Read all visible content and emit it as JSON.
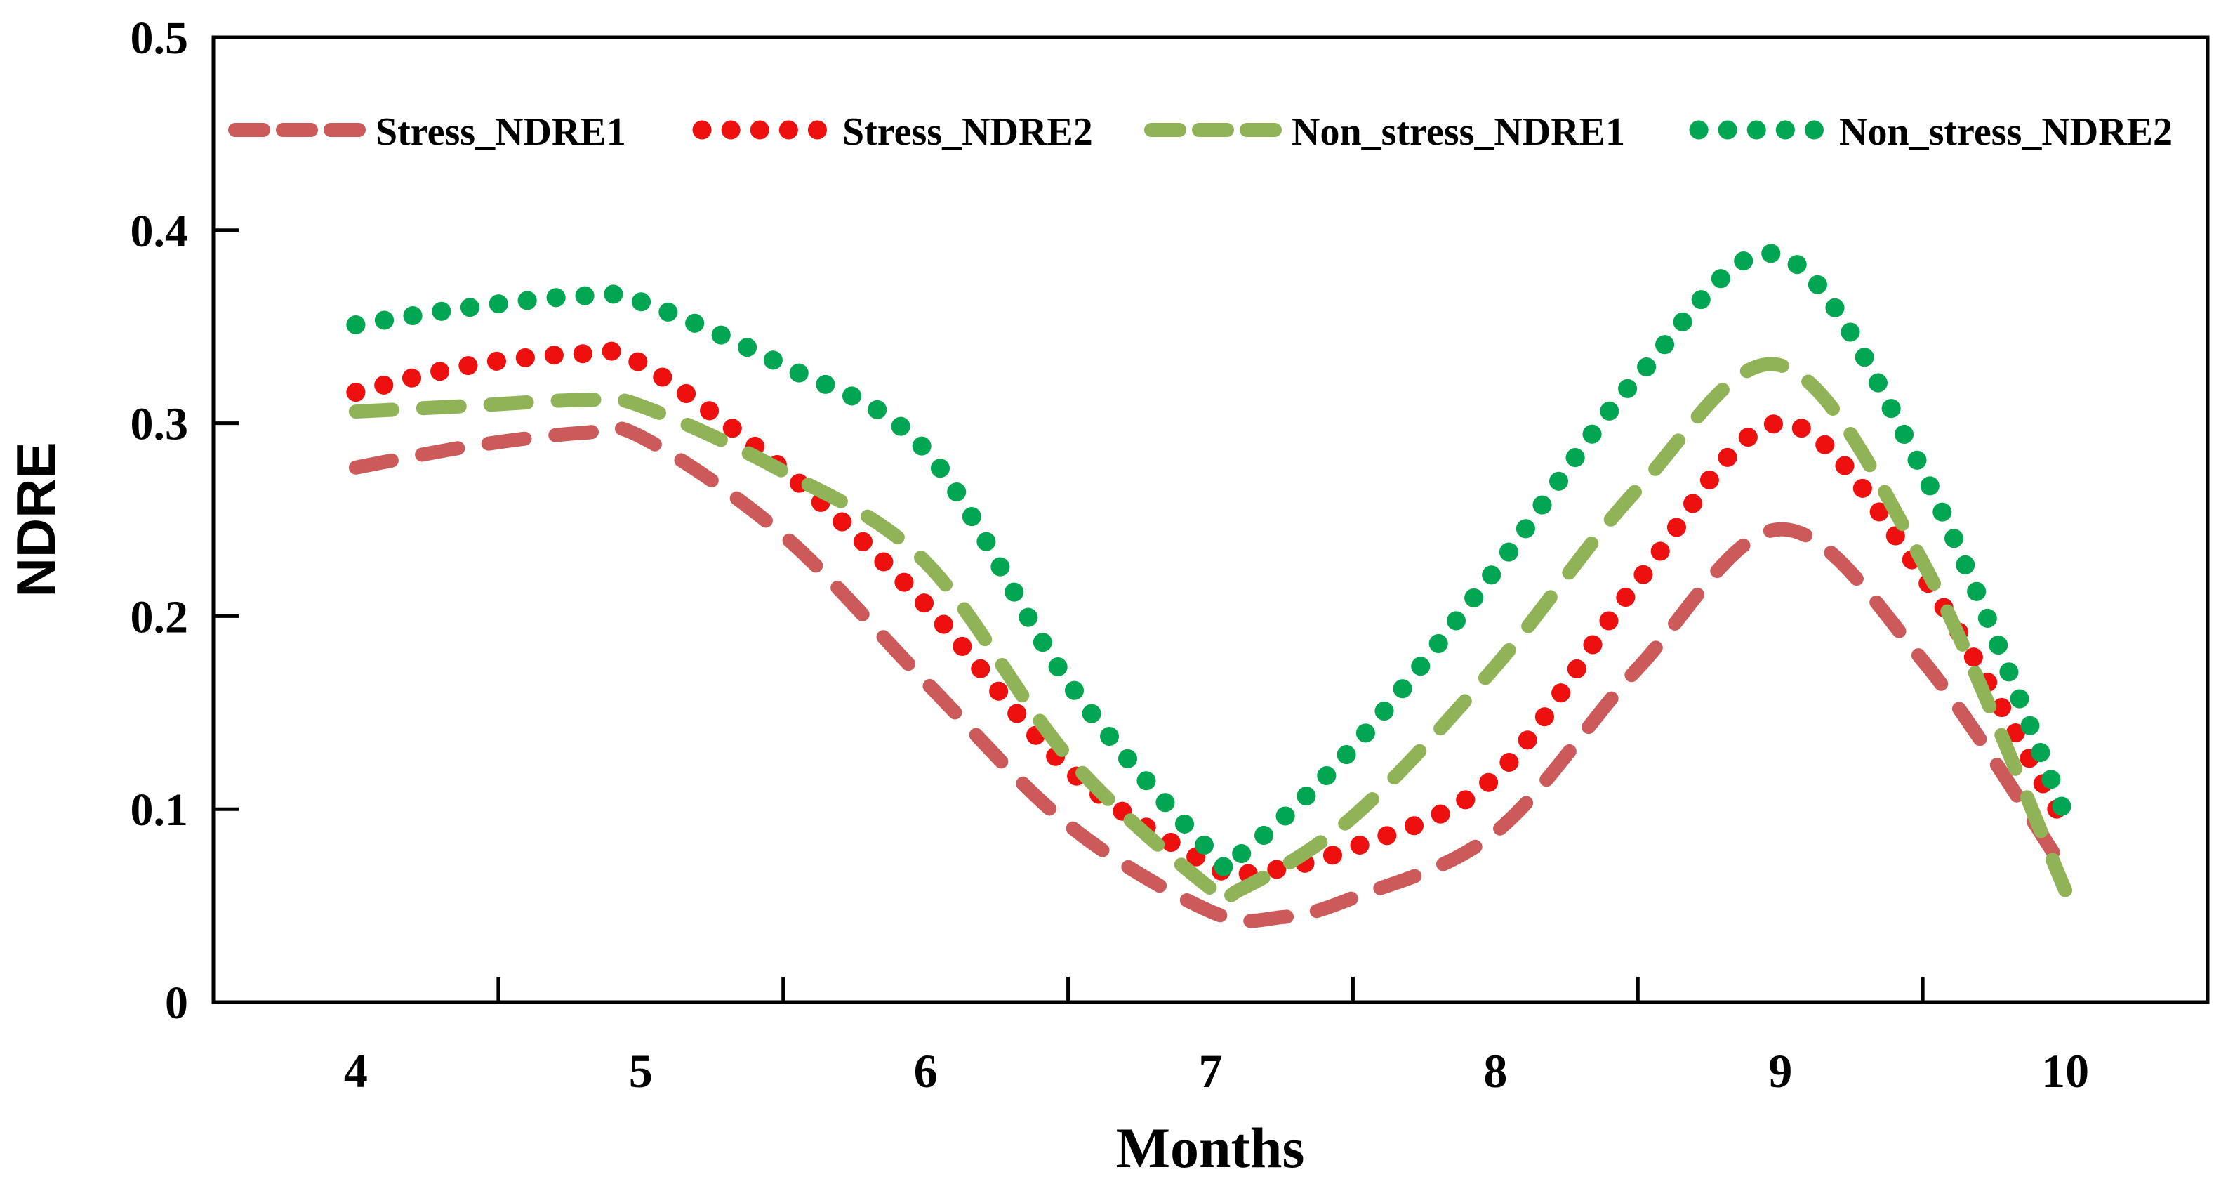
{
  "figure": {
    "background": "#ffffff",
    "frame_color": "#000000"
  },
  "chart_data": {
    "type": "line",
    "title": "",
    "xlabel": "Months",
    "ylabel": "NDRE",
    "xlim": [
      3.5,
      10.5
    ],
    "ylim": [
      0,
      0.5
    ],
    "grid": false,
    "legend_position": "top-inside-row",
    "x_tick_labels": [
      "4",
      "5",
      "6",
      "7",
      "8",
      "9",
      "10"
    ],
    "x_tick_label_positions": [
      4,
      5,
      6,
      7,
      8,
      9,
      10
    ],
    "x_tick_mark_positions": [
      4.5,
      5.5,
      6.5,
      7.5,
      8.5,
      9.5
    ],
    "y_tick_labels": [
      "0",
      "0.1",
      "0.2",
      "0.3",
      "0.4",
      "0.5"
    ],
    "y_tick_label_positions": [
      0,
      0.1,
      0.2,
      0.3,
      0.4,
      0.5
    ],
    "y_tick_mark_positions": [
      0.1,
      0.2,
      0.3,
      0.4
    ],
    "series": [
      {
        "name": "Stress_NDRE1",
        "color": "#cd5a5a",
        "style": "dashed",
        "points": [
          [
            4,
            0.277
          ],
          [
            4.4,
            0.288
          ],
          [
            4.8,
            0.295
          ],
          [
            5,
            0.293
          ],
          [
            5.5,
            0.242
          ],
          [
            6,
            0.166
          ],
          [
            6.5,
            0.092
          ],
          [
            7,
            0.047
          ],
          [
            7.25,
            0.044
          ],
          [
            7.5,
            0.054
          ],
          [
            8,
            0.088
          ],
          [
            8.5,
            0.173
          ],
          [
            9,
            0.245
          ],
          [
            9.5,
            0.177
          ],
          [
            10,
            0.068
          ]
        ]
      },
      {
        "name": "Stress_NDRE2",
        "color": "#ee0f0f",
        "style": "dotted",
        "points": [
          [
            4,
            0.316
          ],
          [
            4.4,
            0.33
          ],
          [
            4.8,
            0.336
          ],
          [
            5,
            0.331
          ],
          [
            5.5,
            0.276
          ],
          [
            6,
            0.206
          ],
          [
            6.5,
            0.121
          ],
          [
            7,
            0.071
          ],
          [
            7.15,
            0.067
          ],
          [
            7.5,
            0.08
          ],
          [
            8,
            0.117
          ],
          [
            8.5,
            0.218
          ],
          [
            9,
            0.3
          ],
          [
            9.5,
            0.221
          ],
          [
            10,
            0.092
          ]
        ]
      },
      {
        "name": "Non_stress_NDRE1",
        "color": "#8fb356",
        "style": "dashed",
        "points": [
          [
            4,
            0.306
          ],
          [
            4.4,
            0.309
          ],
          [
            4.8,
            0.312
          ],
          [
            5,
            0.309
          ],
          [
            5.5,
            0.275
          ],
          [
            6,
            0.228
          ],
          [
            6.5,
            0.127
          ],
          [
            7,
            0.059
          ],
          [
            7.1,
            0.058
          ],
          [
            7.5,
            0.096
          ],
          [
            8,
            0.174
          ],
          [
            8.5,
            0.266
          ],
          [
            9,
            0.33
          ],
          [
            9.5,
            0.228
          ],
          [
            10,
            0.058
          ]
        ]
      },
      {
        "name": "Non_stress_NDRE2",
        "color": "#00a651",
        "style": "dotted",
        "points": [
          [
            4,
            0.351
          ],
          [
            4.4,
            0.36
          ],
          [
            4.8,
            0.366
          ],
          [
            5,
            0.363
          ],
          [
            5.5,
            0.33
          ],
          [
            6,
            0.286
          ],
          [
            6.5,
            0.166
          ],
          [
            7,
            0.078
          ],
          [
            7.1,
            0.076
          ],
          [
            7.5,
            0.132
          ],
          [
            8,
            0.224
          ],
          [
            8.5,
            0.324
          ],
          [
            9,
            0.387
          ],
          [
            9.5,
            0.275
          ],
          [
            10,
            0.097
          ]
        ]
      }
    ]
  }
}
